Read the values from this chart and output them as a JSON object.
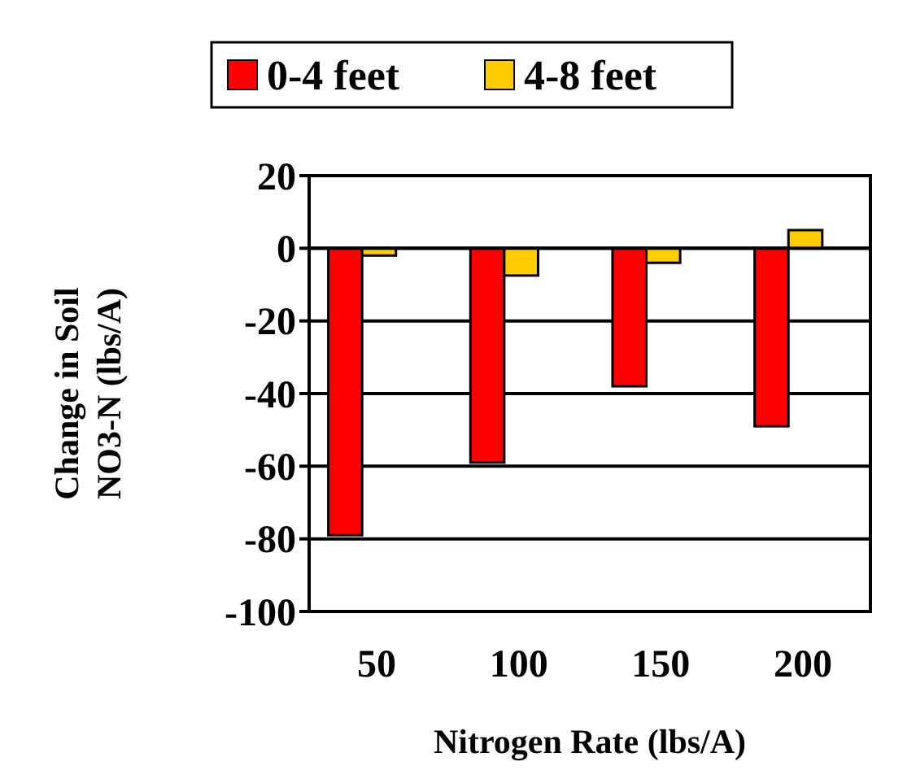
{
  "chart_data": {
    "type": "bar",
    "xlabel": "Nitrogen Rate (lbs/A)",
    "ylabel": "Change in Soil\nNO3-N (lbs/A)",
    "categories": [
      "50",
      "100",
      "150",
      "200"
    ],
    "series": [
      {
        "name": "0-4 feet",
        "color": "#ff0000",
        "values": [
          -79,
          -59,
          -38,
          -49
        ]
      },
      {
        "name": "4-8 feet",
        "color": "#ffcc00",
        "values": [
          -2,
          -7.5,
          -4,
          5
        ]
      }
    ],
    "ylim": [
      -100,
      20
    ],
    "yticks": [
      -100,
      -80,
      -60,
      -40,
      -20,
      0,
      20
    ],
    "grid": "y",
    "legend": "top"
  }
}
